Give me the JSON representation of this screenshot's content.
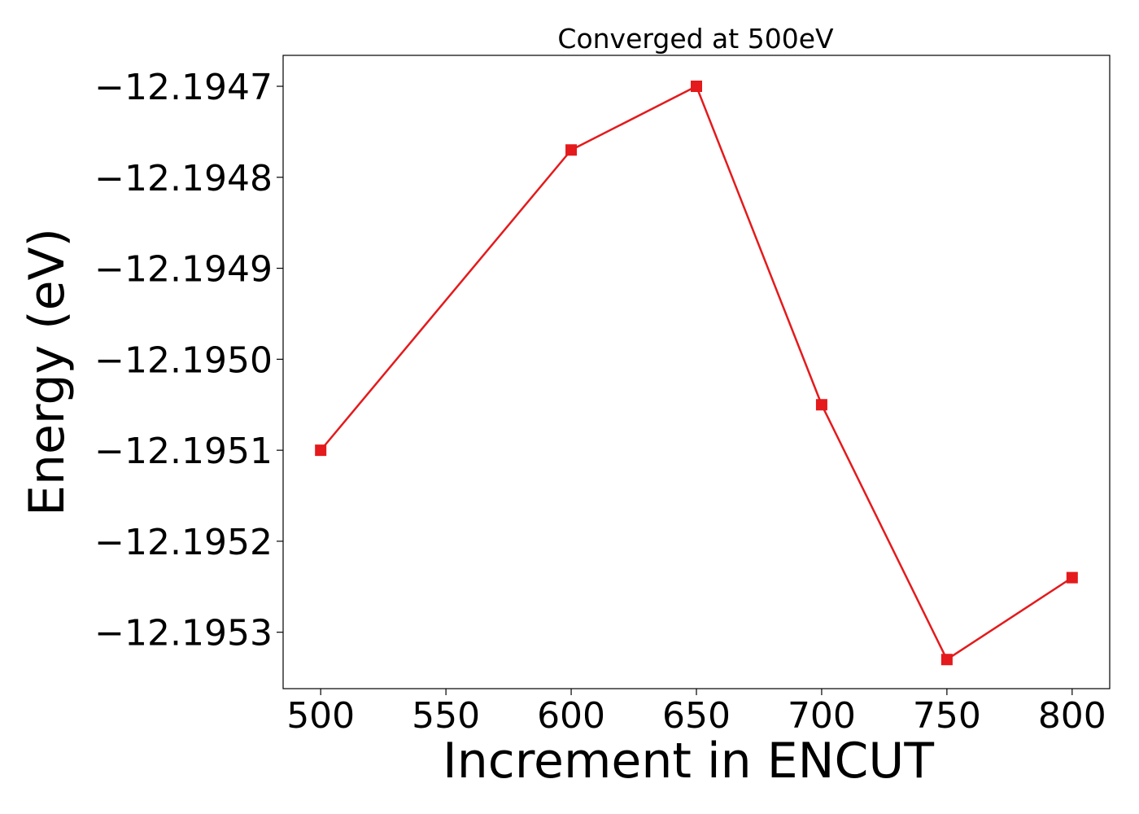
{
  "chart_data": {
    "type": "line",
    "title": "Converged at 500eV",
    "xlabel": "Increment in ENCUT",
    "ylabel": "Energy (eV)",
    "x": [
      500,
      600,
      650,
      700,
      750,
      800
    ],
    "series": [
      {
        "values": [
          -12.1951,
          -12.19477,
          -12.1947,
          -12.19505,
          -12.19533,
          -12.19524
        ],
        "color": "#e41a1c",
        "marker": "square"
      }
    ],
    "xlim": [
      485,
      815
    ],
    "ylim": [
      -12.195362,
      -12.194666
    ],
    "xticks": [
      500,
      550,
      600,
      650,
      700,
      750,
      800
    ],
    "xtick_labels": [
      "500",
      "550",
      "600",
      "650",
      "700",
      "750",
      "800"
    ],
    "yticks": [
      -12.1953,
      -12.1952,
      -12.1951,
      -12.195,
      -12.1949,
      -12.1948,
      -12.1947
    ],
    "ytick_labels": [
      "−12.1953",
      "−12.1952",
      "−12.1951",
      "−12.1950",
      "−12.1949",
      "−12.1948",
      "−12.1947"
    ],
    "grid": false,
    "legend": "none"
  }
}
